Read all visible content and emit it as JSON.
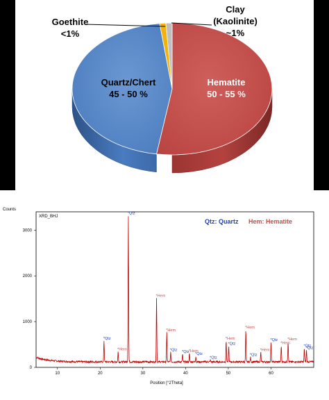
{
  "chart_data": [
    {
      "type": "pie",
      "title": "",
      "slices": [
        {
          "label": "Hematite",
          "range_text": "50 - 55 %",
          "value": 52.5,
          "color": "#c0504d"
        },
        {
          "label": "Quartz/Chert",
          "range_text": "45 - 50 %",
          "value": 45.5,
          "color": "#4f81bd"
        },
        {
          "label": "Goethite",
          "range_text": "<1%",
          "value": 1.0,
          "color": "#f2b40c"
        },
        {
          "label": "Clay (Kaolinite)",
          "range_text": "~1%",
          "value": 1.0,
          "color": "#bfbfbf"
        }
      ],
      "callouts": {
        "goethite_line1": "Goethite",
        "goethite_line2": "<1%",
        "clay_line1": "Clay",
        "clay_line2": "(Kaolinite)",
        "clay_line3": "~1%"
      },
      "inner_labels": {
        "hematite_name": "Hematite",
        "hematite_range": "50 - 55 %",
        "quartz_name": "Quartz/Chert",
        "quartz_range": "45 - 50 %"
      },
      "colors": {
        "frame": "#000000",
        "background": "#ffffff"
      }
    },
    {
      "type": "line",
      "title": "XRD_BHJ",
      "xlabel": "Position [°2Theta]",
      "ylabel": "Counts",
      "xlim": [
        5,
        70
      ],
      "ylim": [
        0,
        3400
      ],
      "x_ticks": [
        10,
        20,
        30,
        40,
        50,
        60
      ],
      "y_ticks": [
        0,
        1000,
        2000,
        3000
      ],
      "legend": [
        {
          "text": "Qtz: Quartz",
          "color": "#1f3fb5"
        },
        {
          "text": "Hem: Hematite",
          "color": "#c0504d"
        }
      ],
      "line_color": "#c00000",
      "background_level": 120,
      "peaks": [
        {
          "x": 20.9,
          "y": 580,
          "label": "Qtz",
          "mineral": "Qtz"
        },
        {
          "x": 24.2,
          "y": 340,
          "label": "Hem",
          "mineral": "Hem"
        },
        {
          "x": 26.6,
          "y": 3320,
          "label": "Qtz",
          "mineral": "Qtz"
        },
        {
          "x": 33.2,
          "y": 1510,
          "label": "Hem",
          "mineral": "Hem"
        },
        {
          "x": 35.6,
          "y": 760,
          "label": "Hem",
          "mineral": "Hem"
        },
        {
          "x": 36.5,
          "y": 330,
          "label": "Qtz",
          "mineral": "Qtz"
        },
        {
          "x": 39.3,
          "y": 290,
          "label": "Qtz",
          "mineral": "Qtz"
        },
        {
          "x": 40.9,
          "y": 300,
          "label": "Hem",
          "mineral": "Hem"
        },
        {
          "x": 42.4,
          "y": 240,
          "label": "Qtz",
          "mineral": "Qtz"
        },
        {
          "x": 45.8,
          "y": 160,
          "label": "Qtz",
          "mineral": "Qtz"
        },
        {
          "x": 49.5,
          "y": 580,
          "label": "Hem",
          "mineral": "Hem"
        },
        {
          "x": 50.1,
          "y": 460,
          "label": "Qtz",
          "mineral": "Qtz"
        },
        {
          "x": 54.1,
          "y": 820,
          "label": "Hem",
          "mineral": "Hem"
        },
        {
          "x": 55.2,
          "y": 220,
          "label": "Qtz",
          "mineral": "Qtz"
        },
        {
          "x": 57.6,
          "y": 330,
          "label": "Hem",
          "mineral": "Hem"
        },
        {
          "x": 60.0,
          "y": 550,
          "label": "Qtz",
          "mineral": "Qtz"
        },
        {
          "x": 62.4,
          "y": 480,
          "label": "Hem",
          "mineral": "Hem"
        },
        {
          "x": 64.0,
          "y": 560,
          "label": "Hem",
          "mineral": "Hem"
        },
        {
          "x": 67.8,
          "y": 420,
          "label": "Qtz",
          "mineral": "Qtz"
        },
        {
          "x": 68.3,
          "y": 370,
          "label": "Qtz",
          "mineral": "Qtz"
        }
      ]
    }
  ]
}
